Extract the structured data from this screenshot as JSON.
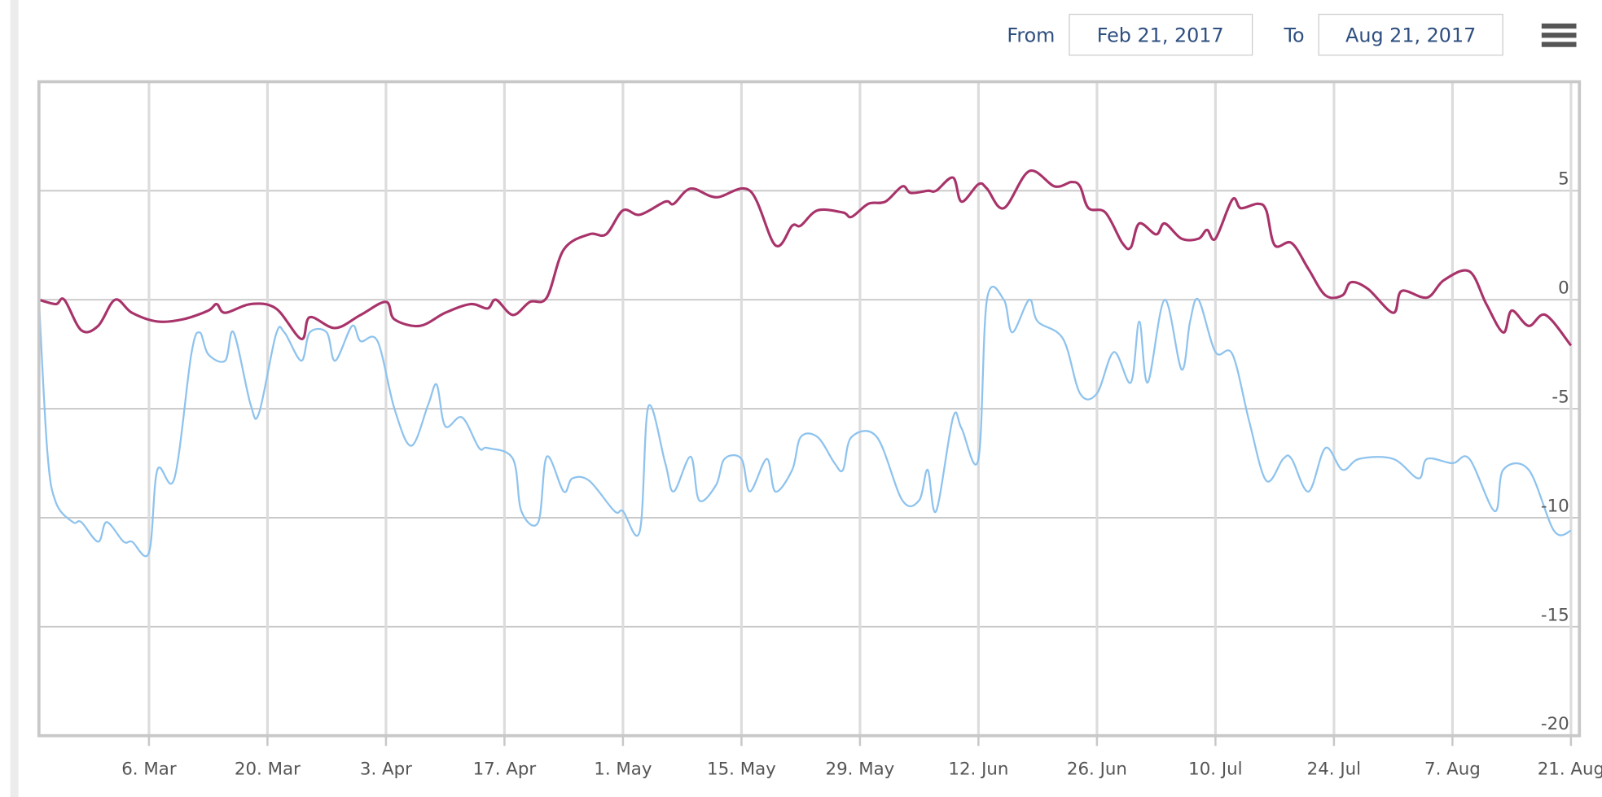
{
  "range_selector": {
    "from_label": "From",
    "from_value": "Feb 21, 2017",
    "to_label": "To",
    "to_value": "Aug 21, 2017"
  },
  "chart_data": {
    "type": "line",
    "xlim": [
      "2017-02-21",
      "2017-08-22"
    ],
    "xticks": [
      {
        "value": "2017-03-06",
        "label": "6. Mar"
      },
      {
        "value": "2017-03-20",
        "label": "20. Mar"
      },
      {
        "value": "2017-04-03",
        "label": "3. Apr"
      },
      {
        "value": "2017-04-17",
        "label": "17. Apr"
      },
      {
        "value": "2017-05-01",
        "label": "1. May"
      },
      {
        "value": "2017-05-15",
        "label": "15. May"
      },
      {
        "value": "2017-05-29",
        "label": "29. May"
      },
      {
        "value": "2017-06-12",
        "label": "12. Jun"
      },
      {
        "value": "2017-06-26",
        "label": "26. Jun"
      },
      {
        "value": "2017-07-10",
        "label": "10. Jul"
      },
      {
        "value": "2017-07-24",
        "label": "24. Jul"
      },
      {
        "value": "2017-08-07",
        "label": "7. Aug"
      },
      {
        "value": "2017-08-21",
        "label": "21. Aug"
      }
    ],
    "ylim": [
      -20,
      10
    ],
    "yticks": [
      -20,
      -15,
      -10,
      -5,
      0,
      5
    ],
    "grid": true,
    "series": [
      {
        "color": "#a8336a",
        "x": [
          "2017-02-21",
          "2017-02-23",
          "2017-02-24",
          "2017-02-26",
          "2017-02-28",
          "2017-03-02",
          "2017-03-04",
          "2017-03-07",
          "2017-03-10",
          "2017-03-13",
          "2017-03-14",
          "2017-03-15",
          "2017-03-18",
          "2017-03-21",
          "2017-03-24",
          "2017-03-25",
          "2017-03-28",
          "2017-03-31",
          "2017-04-03",
          "2017-04-04",
          "2017-04-07",
          "2017-04-10",
          "2017-04-13",
          "2017-04-15",
          "2017-04-16",
          "2017-04-18",
          "2017-04-20",
          "2017-04-22",
          "2017-04-24",
          "2017-04-27",
          "2017-04-29",
          "2017-05-01",
          "2017-05-03",
          "2017-05-06",
          "2017-05-07",
          "2017-05-09",
          "2017-05-12",
          "2017-05-16",
          "2017-05-19",
          "2017-05-21",
          "2017-05-22",
          "2017-05-24",
          "2017-05-27",
          "2017-05-28",
          "2017-05-30",
          "2017-06-01",
          "2017-06-03",
          "2017-06-04",
          "2017-06-06",
          "2017-06-07",
          "2017-06-09",
          "2017-06-10",
          "2017-06-12",
          "2017-06-13",
          "2017-06-15",
          "2017-06-18",
          "2017-06-21",
          "2017-06-23",
          "2017-06-24",
          "2017-06-25",
          "2017-06-27",
          "2017-06-29",
          "2017-06-30",
          "2017-07-01",
          "2017-07-03",
          "2017-07-04",
          "2017-07-06",
          "2017-07-08",
          "2017-07-09",
          "2017-07-10",
          "2017-07-12",
          "2017-07-13",
          "2017-07-15",
          "2017-07-16",
          "2017-07-17",
          "2017-07-19",
          "2017-07-21",
          "2017-07-23",
          "2017-07-25",
          "2017-07-26",
          "2017-07-28",
          "2017-07-31",
          "2017-08-01",
          "2017-08-04",
          "2017-08-06",
          "2017-08-09",
          "2017-08-11",
          "2017-08-13",
          "2017-08-14",
          "2017-08-16",
          "2017-08-18",
          "2017-08-21"
        ],
        "values": [
          0,
          -0.2,
          0,
          -1.4,
          -1.2,
          0,
          -0.6,
          -1.0,
          -0.9,
          -0.5,
          -0.2,
          -0.6,
          -0.2,
          -0.4,
          -1.8,
          -0.8,
          -1.3,
          -0.7,
          -0.1,
          -0.9,
          -1.2,
          -0.6,
          -0.2,
          -0.4,
          0,
          -0.7,
          -0.1,
          0.1,
          2.3,
          3.0,
          3.0,
          4.1,
          3.9,
          4.5,
          4.4,
          5.1,
          4.7,
          5.0,
          2.5,
          3.4,
          3.4,
          4.1,
          4.0,
          3.8,
          4.4,
          4.5,
          5.2,
          4.9,
          5.0,
          5.0,
          5.6,
          4.5,
          5.3,
          5.1,
          4.2,
          5.9,
          5.2,
          5.4,
          5.2,
          4.2,
          4.0,
          2.6,
          2.4,
          3.5,
          3.0,
          3.5,
          2.8,
          2.8,
          3.2,
          2.8,
          4.6,
          4.2,
          4.4,
          4.1,
          2.5,
          2.6,
          1.4,
          0.2,
          0.2,
          0.8,
          0.5,
          -0.6,
          0.4,
          0.1,
          0.9,
          1.3,
          -0.2,
          -1.5,
          -0.5,
          -1.2,
          -0.7,
          -2.1
        ]
      },
      {
        "color": "#8ec3ee",
        "x": [
          "2017-02-21",
          "2017-02-22",
          "2017-02-23",
          "2017-02-25",
          "2017-02-26",
          "2017-02-28",
          "2017-03-01",
          "2017-03-03",
          "2017-03-04",
          "2017-03-06",
          "2017-03-07",
          "2017-03-09",
          "2017-03-11",
          "2017-03-12",
          "2017-03-13",
          "2017-03-15",
          "2017-03-16",
          "2017-03-18",
          "2017-03-19",
          "2017-03-21",
          "2017-03-22",
          "2017-03-24",
          "2017-03-25",
          "2017-03-27",
          "2017-03-28",
          "2017-03-30",
          "2017-03-31",
          "2017-04-02",
          "2017-04-04",
          "2017-04-06",
          "2017-04-08",
          "2017-04-09",
          "2017-04-10",
          "2017-04-12",
          "2017-04-14",
          "2017-04-15",
          "2017-04-18",
          "2017-04-19",
          "2017-04-21",
          "2017-04-22",
          "2017-04-24",
          "2017-04-25",
          "2017-04-27",
          "2017-04-30",
          "2017-05-01",
          "2017-05-03",
          "2017-05-04",
          "2017-05-06",
          "2017-05-07",
          "2017-05-09",
          "2017-05-10",
          "2017-05-12",
          "2017-05-13",
          "2017-05-15",
          "2017-05-16",
          "2017-05-18",
          "2017-05-19",
          "2017-05-21",
          "2017-05-22",
          "2017-05-24",
          "2017-05-26",
          "2017-05-27",
          "2017-05-28",
          "2017-05-31",
          "2017-06-03",
          "2017-06-05",
          "2017-06-06",
          "2017-06-07",
          "2017-06-09",
          "2017-06-10",
          "2017-06-12",
          "2017-06-13",
          "2017-06-15",
          "2017-06-16",
          "2017-06-18",
          "2017-06-19",
          "2017-06-22",
          "2017-06-24",
          "2017-06-26",
          "2017-06-28",
          "2017-06-30",
          "2017-07-01",
          "2017-07-02",
          "2017-07-04",
          "2017-07-06",
          "2017-07-07",
          "2017-07-08",
          "2017-07-10",
          "2017-07-12",
          "2017-07-14",
          "2017-07-16",
          "2017-07-18",
          "2017-07-19",
          "2017-07-21",
          "2017-07-23",
          "2017-07-25",
          "2017-07-27",
          "2017-07-31",
          "2017-08-03",
          "2017-08-04",
          "2017-08-07",
          "2017-08-09",
          "2017-08-12",
          "2017-08-13",
          "2017-08-16",
          "2017-08-19",
          "2017-08-21"
        ],
        "values": [
          0,
          -7,
          -9.3,
          -10.2,
          -10.2,
          -11.1,
          -10.2,
          -11.1,
          -11.1,
          -11.6,
          -7.8,
          -8.2,
          -2.5,
          -1.5,
          -2.5,
          -2.8,
          -1.5,
          -4.8,
          -5.2,
          -1.6,
          -1.5,
          -2.8,
          -1.5,
          -1.5,
          -2.8,
          -1.2,
          -1.9,
          -1.9,
          -5.0,
          -6.7,
          -4.8,
          -3.9,
          -5.8,
          -5.4,
          -6.8,
          -6.8,
          -7.3,
          -9.7,
          -10.2,
          -7.2,
          -8.8,
          -8.2,
          -8.3,
          -9.7,
          -9.7,
          -10.6,
          -4.9,
          -7.5,
          -8.8,
          -7.2,
          -9.2,
          -8.5,
          -7.3,
          -7.3,
          -8.8,
          -7.3,
          -8.8,
          -7.8,
          -6.3,
          -6.3,
          -7.5,
          -7.8,
          -6.3,
          -6.3,
          -9.2,
          -9.2,
          -7.8,
          -9.7,
          -5.4,
          -5.9,
          -7.3,
          0,
          0,
          -1.5,
          0,
          -1.0,
          -1.8,
          -4.3,
          -4.3,
          -2.4,
          -3.8,
          -1.0,
          -3.8,
          0,
          -3.2,
          -1.0,
          0,
          -2.4,
          -2.5,
          -5.6,
          -8.3,
          -7.3,
          -7.3,
          -8.8,
          -6.8,
          -7.8,
          -7.3,
          -7.3,
          -8.2,
          -7.3,
          -7.5,
          -7.3,
          -9.7,
          -7.8,
          -7.8,
          -10.6,
          -10.6
        ]
      }
    ]
  }
}
